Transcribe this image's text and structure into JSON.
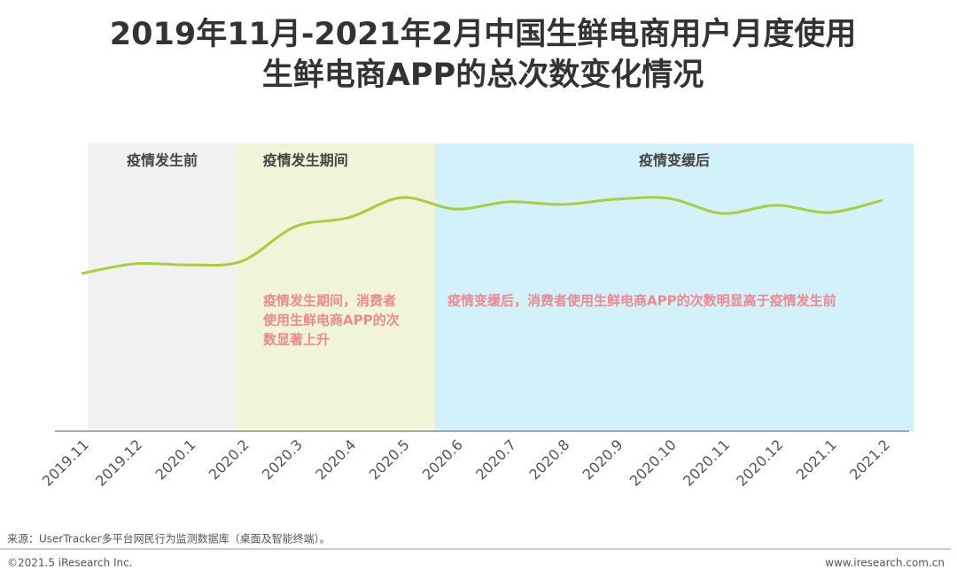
{
  "chart_data": {
    "type": "line",
    "title": [
      "2019年11月-2021年2月中国生鲜电商用户月度使用",
      "生鲜电商APP的总次数变化情况"
    ],
    "categories": [
      "2019.11",
      "2019.12",
      "2020.1",
      "2020.2",
      "2020.3",
      "2020.4",
      "2020.5",
      "2020.6",
      "2020.7",
      "2020.8",
      "2020.9",
      "2020.10",
      "2020.11",
      "2020.12",
      "2021.1",
      "2021.2"
    ],
    "values": [
      54.8,
      58.2,
      57.8,
      59.1,
      71.1,
      74.2,
      81.2,
      77.2,
      79.7,
      78.8,
      80.6,
      80.9,
      75.7,
      78.5,
      76.0,
      80.3
    ],
    "color": "#a8cf3b",
    "ylim": [
      0,
      100
    ],
    "bands": [
      {
        "label": "疫情发生前",
        "color": "#f1f1f1"
      },
      {
        "label": "疫情发生期间",
        "color": "#f0f4d9"
      },
      {
        "label": "疫情变缓后",
        "color": "#d3f1fa"
      }
    ],
    "annotations": [
      [
        "疫情发生期间，消费者",
        "使用生鲜电商APP的次",
        "数显著上升"
      ],
      [
        "疫情变缓后，消费者使用生鲜电商APP的次数明显高于疫情发生前"
      ]
    ],
    "source": "来源：UserTracker多平台网民行为监测数据库（桌面及智能终端）。",
    "copyright": "©2021.5 iResearch Inc.",
    "website": "www.iresearch.com.cn"
  }
}
